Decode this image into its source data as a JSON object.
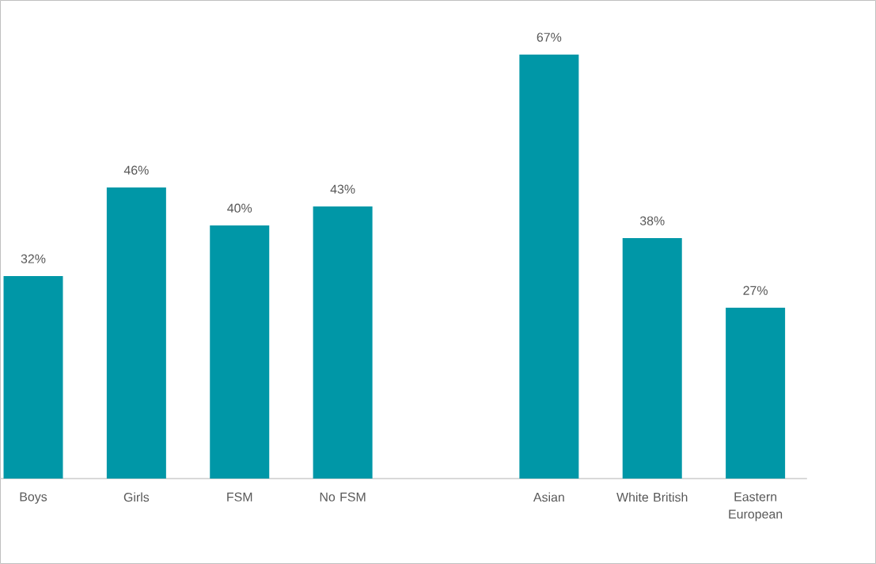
{
  "chart_data": {
    "type": "bar",
    "categories": [
      "Boys",
      "Girls",
      "FSM",
      "No FSM",
      null,
      "Asian",
      "White British",
      "Eastern European"
    ],
    "values": [
      32,
      46,
      40,
      43,
      null,
      67,
      38,
      27
    ],
    "value_labels": [
      "32%",
      "46%",
      "40%",
      "43%",
      null,
      "67%",
      "38%",
      "27%"
    ],
    "color": "#0097a7"
  }
}
